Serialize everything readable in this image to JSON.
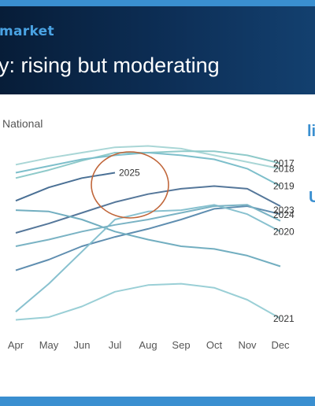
{
  "slide": {
    "section_label": "market",
    "title": "y: rising but moderating",
    "side_fragments": [
      "li",
      "U"
    ]
  },
  "colors": {
    "header_bg": "#0d2f57",
    "accent": "#3a8fd0",
    "highlight_circle": "#c0663a"
  },
  "chart_data": {
    "type": "line",
    "title": "National",
    "xlabel": "",
    "ylabel": "",
    "categories": [
      "Apr",
      "May",
      "Jun",
      "Jul",
      "Aug",
      "Sep",
      "Oct",
      "Nov",
      "Dec"
    ],
    "grid": false,
    "series": [
      {
        "name": "2018",
        "color": "#a9d6d6",
        "values": [
          181,
          186,
          190,
          194,
          195,
          193,
          188,
          183,
          178
        ]
      },
      {
        "name": "2017",
        "color": "#8fcaca",
        "values": [
          171,
          177,
          184,
          190,
          190,
          191,
          191,
          188,
          182
        ]
      },
      {
        "name": "2019",
        "color": "#7ebfcb",
        "values": [
          175,
          180,
          185,
          188,
          190,
          188,
          185,
          178,
          165
        ]
      },
      {
        "name": "2025",
        "color": "#4a7095",
        "values": [
          154,
          164,
          171,
          175,
          null,
          null,
          null,
          null,
          null
        ]
      },
      {
        "name": "2024",
        "color": "#55779a",
        "values": [
          130,
          137,
          145,
          153,
          159,
          163,
          165,
          163,
          150
        ]
      },
      {
        "name": "2023",
        "color": "#5f8eb0",
        "values": [
          102,
          110,
          120,
          127,
          133,
          140,
          148,
          150,
          144
        ]
      },
      {
        "name": "",
        "color": "#72aec0",
        "values": [
          147,
          146,
          140,
          131,
          125,
          120,
          118,
          113,
          105
        ]
      },
      {
        "name": "2020",
        "color": "#88c1cf",
        "values": [
          71,
          92,
          116,
          140,
          146,
          147,
          151,
          144,
          131
        ]
      },
      {
        "name": "",
        "color": "#7ab3c4",
        "values": [
          120,
          125,
          131,
          136,
          140,
          145,
          150,
          151,
          139
        ]
      },
      {
        "name": "2021",
        "color": "#9acfd6",
        "values": [
          65,
          67,
          75,
          86,
          91,
          92,
          89,
          80,
          66
        ]
      }
    ],
    "annotations": [
      "2025"
    ]
  }
}
